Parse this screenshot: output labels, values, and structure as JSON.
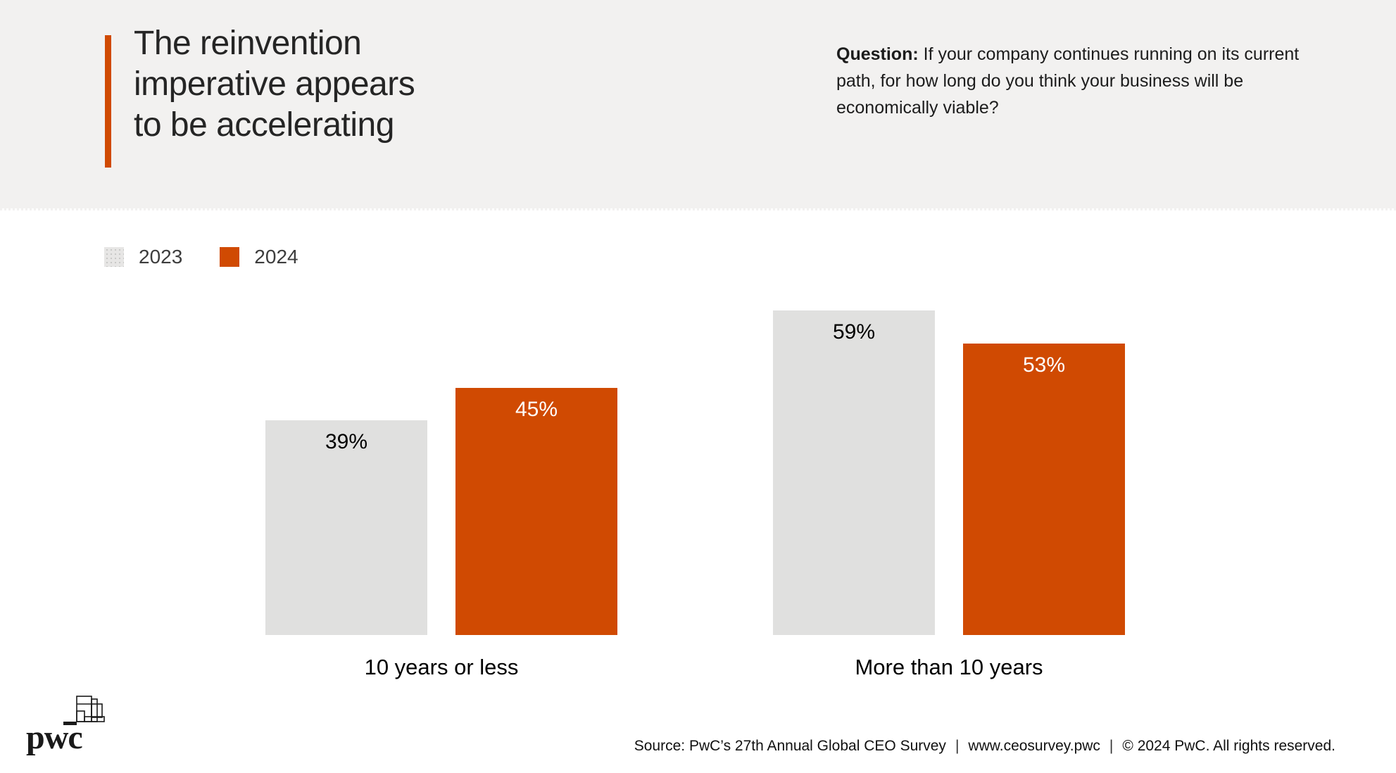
{
  "header": {
    "title_lines": [
      "The reinvention",
      "imperative appears",
      "to be accelerating"
    ],
    "question": {
      "label": "Question:",
      "line1_rest": " If your company continues running on its current",
      "line2": "path, for how long do you think your business will be",
      "line3": "economically viable?"
    }
  },
  "legend": {
    "items": [
      {
        "label": "2023",
        "color": "#E7E6E5",
        "pattern": "dotted"
      },
      {
        "label": "2024",
        "color": "#D04A02",
        "pattern": "solid"
      }
    ]
  },
  "chart_data": {
    "type": "bar",
    "categories": [
      "10 years or less",
      "More than 10 years"
    ],
    "series": [
      {
        "name": "2023",
        "color": "#E0E0DF",
        "label_color": "#000000",
        "values": [
          39,
          59
        ]
      },
      {
        "name": "2024",
        "color": "#D04A02",
        "label_color": "#FFFFFF",
        "values": [
          45,
          53
        ]
      }
    ],
    "value_suffix": "%",
    "ylim": [
      0,
      100
    ],
    "grid": false,
    "legend_position": "top-left",
    "title": "The reinvention imperative appears to be accelerating"
  },
  "footer": {
    "logo_text": "pwc",
    "source": "Source: PwC’s 27th Annual Global CEO Survey",
    "separator": "|",
    "url": "www.ceosurvey.pwc",
    "copyright": "© 2024 PwC. All rights reserved."
  },
  "colors": {
    "accent_orange": "#D04A02",
    "header_bg": "#F2F1F0",
    "bar_gray": "#E0E0DF"
  }
}
